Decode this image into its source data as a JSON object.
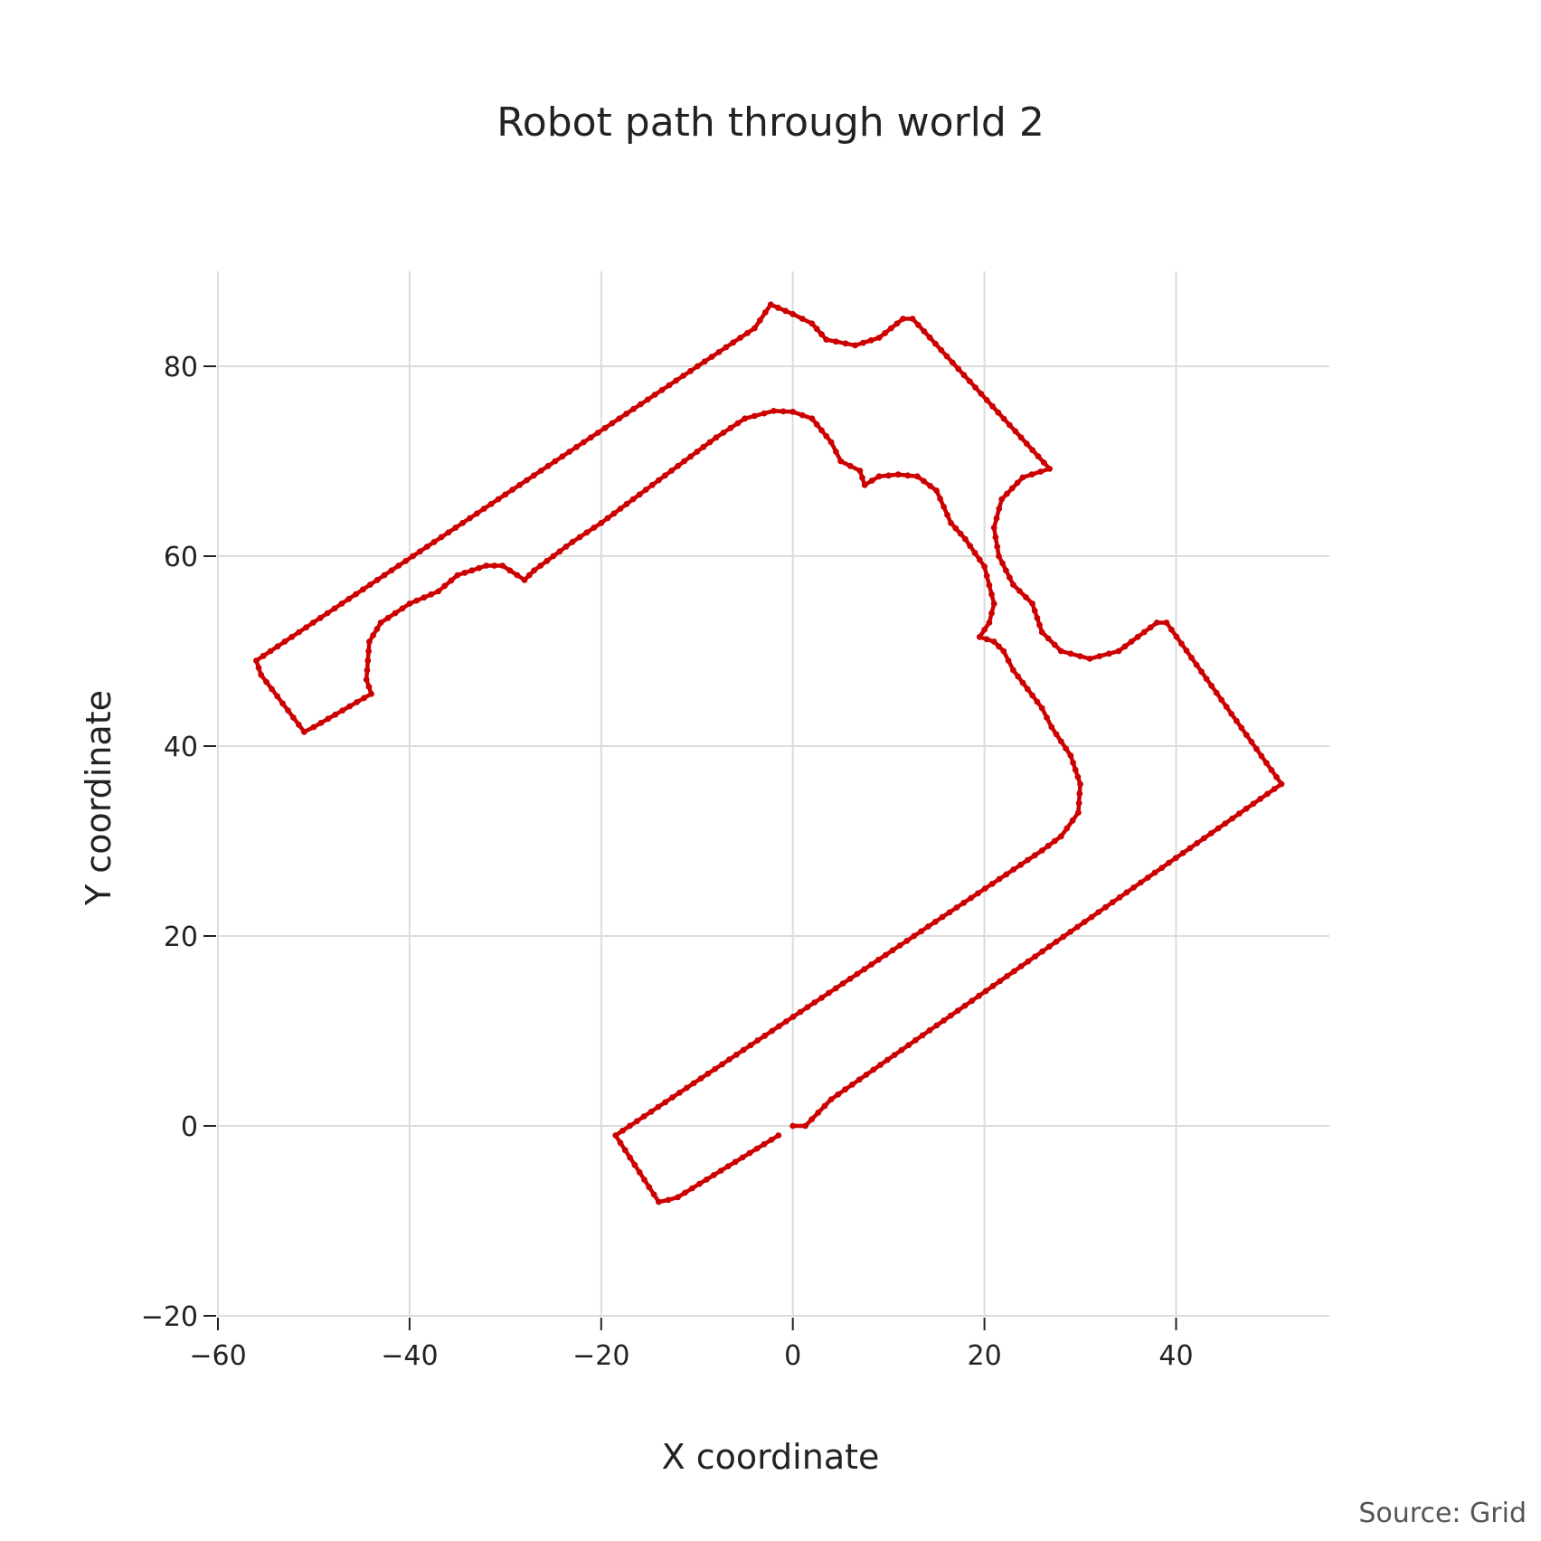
{
  "chart_data": {
    "type": "scatter",
    "title": "Robot path through world 2",
    "xlabel": "X coordinate",
    "ylabel": "Y coordinate",
    "source": "Source: Grid",
    "xlim": [
      -60,
      56
    ],
    "ylim": [
      -20,
      90
    ],
    "xticks": [
      -60,
      -40,
      -20,
      0,
      20,
      40
    ],
    "yticks": [
      -20,
      0,
      20,
      40,
      60,
      80
    ],
    "xtick_labels": [
      "−60",
      "−40",
      "−20",
      "0",
      "20",
      "40"
    ],
    "ytick_labels": [
      "−20",
      "0",
      "20",
      "40",
      "60",
      "80"
    ],
    "grid": true,
    "colors": {
      "path": "#cc0000",
      "grid": "#dcdcdc"
    },
    "series": [
      {
        "mode": "lines+markers",
        "path_waypoints": [
          [
            0,
            0
          ],
          [
            1.3,
            0
          ],
          [
            4,
            2.8
          ],
          [
            51,
            36
          ],
          [
            39,
            53
          ],
          [
            38,
            53
          ],
          [
            34,
            50
          ],
          [
            31,
            49.2
          ],
          [
            28,
            50
          ],
          [
            26,
            52
          ],
          [
            25,
            55
          ],
          [
            23,
            57
          ],
          [
            21.5,
            60
          ],
          [
            21,
            63
          ],
          [
            21.8,
            66
          ],
          [
            24,
            68.3
          ],
          [
            26.8,
            69.2
          ],
          [
            12.5,
            85
          ],
          [
            11.5,
            85
          ],
          [
            9,
            83
          ],
          [
            6.5,
            82.2
          ],
          [
            3.5,
            82.8
          ],
          [
            2,
            84.5
          ],
          [
            0,
            85.5
          ],
          [
            -2.3,
            86.5
          ],
          [
            -4,
            84
          ],
          [
            -56,
            49
          ],
          [
            -55.5,
            47.5
          ],
          [
            -51,
            41.5
          ],
          [
            -50,
            42
          ],
          [
            -44,
            45.5
          ],
          [
            -44.5,
            47
          ],
          [
            -44.2,
            51
          ],
          [
            -43,
            53
          ],
          [
            -40,
            55
          ],
          [
            -37,
            56.3
          ],
          [
            -35,
            58
          ],
          [
            -32,
            59
          ],
          [
            -30.3,
            59
          ],
          [
            -28,
            57.5
          ],
          [
            -27,
            58.5
          ],
          [
            -25,
            60
          ],
          [
            -23,
            61.5
          ],
          [
            -20,
            63.5
          ],
          [
            -16,
            66.5
          ],
          [
            -12,
            69.5
          ],
          [
            -8,
            72.5
          ],
          [
            -5,
            74.5
          ],
          [
            -2,
            75.3
          ],
          [
            0,
            75.2
          ],
          [
            2,
            74.5
          ],
          [
            4,
            72
          ],
          [
            5,
            70
          ],
          [
            7,
            69
          ],
          [
            7.5,
            67.5
          ],
          [
            9,
            68.4
          ],
          [
            11,
            68.6
          ],
          [
            13,
            68.4
          ],
          [
            15,
            66.9
          ],
          [
            16.5,
            63.5
          ],
          [
            18,
            61.8
          ],
          [
            20,
            58.9
          ],
          [
            21,
            55
          ],
          [
            20.5,
            53
          ],
          [
            19.5,
            51.5
          ],
          [
            21,
            51
          ],
          [
            22,
            50
          ],
          [
            23,
            48
          ],
          [
            26,
            44
          ],
          [
            27,
            42
          ],
          [
            29,
            39
          ],
          [
            30,
            36
          ],
          [
            29.8,
            33
          ],
          [
            28,
            30.5
          ],
          [
            26,
            29
          ],
          [
            -18.5,
            -1
          ],
          [
            -14,
            -8
          ],
          [
            -13,
            -7.8
          ],
          [
            -12,
            -7.5
          ],
          [
            -1.5,
            -1
          ]
        ]
      }
    ]
  }
}
